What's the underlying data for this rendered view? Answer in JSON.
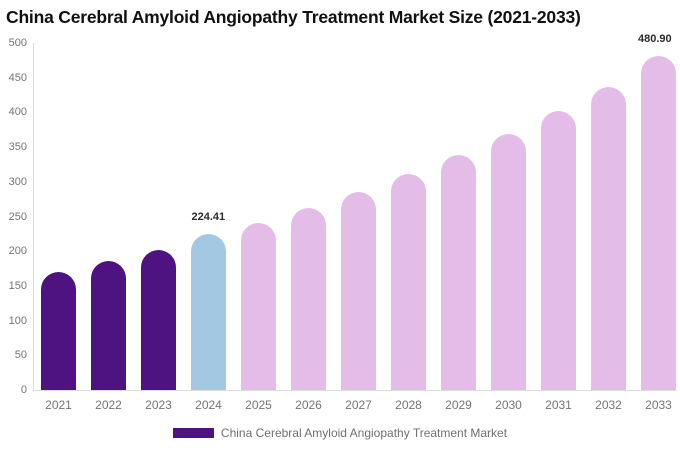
{
  "title": "China Cerebral Amyloid Angiopathy Treatment Market Size (2021-2033)",
  "legend": {
    "label": "China Cerebral Amyloid Angiopathy Treatment Market",
    "swatch_color": "#4E1380"
  },
  "colors": {
    "historical_bar": "#4E1380",
    "base_year_bar": "#A3C9E2",
    "forecast_bar": "#E4BCE8",
    "axis_line": "#DCDCDC",
    "tick_text": "#757575",
    "value_label_text": "#2B2B2B",
    "title_text": "#111111",
    "legend_text": "#6E7073",
    "background": "#FFFFFF"
  },
  "chart_data": {
    "type": "bar",
    "title": "China Cerebral Amyloid Angiopathy Treatment Market Size (2021-2033)",
    "xlabel": "",
    "ylabel": "",
    "ylim": [
      0,
      500
    ],
    "yticks": [
      0,
      50,
      100,
      150,
      200,
      250,
      300,
      350,
      400,
      450,
      500
    ],
    "grid": "off",
    "legend_position": "bottom-center",
    "categories": [
      "2021",
      "2022",
      "2023",
      "2024",
      "2025",
      "2026",
      "2027",
      "2028",
      "2029",
      "2030",
      "2031",
      "2032",
      "2033"
    ],
    "values": [
      170,
      186,
      202,
      224.41,
      241,
      262,
      286,
      312,
      339,
      369,
      402,
      437,
      480.9
    ],
    "bar_colors": [
      "#4E1380",
      "#4E1380",
      "#4E1380",
      "#A3C9E2",
      "#E4BCE8",
      "#E4BCE8",
      "#E4BCE8",
      "#E4BCE8",
      "#E4BCE8",
      "#E4BCE8",
      "#E4BCE8",
      "#E4BCE8",
      "#E4BCE8"
    ],
    "data_labels": [
      {
        "index": 3,
        "text": "224.41"
      },
      {
        "index": 12,
        "text": "480.90"
      }
    ]
  }
}
